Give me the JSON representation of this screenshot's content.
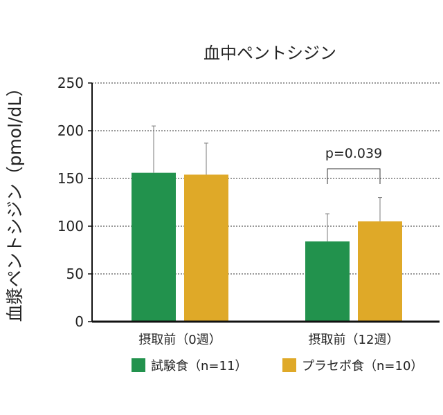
{
  "colors": {
    "test": "#22924d",
    "placebo": "#dfa928",
    "axis": "#111111",
    "grid": "#333333",
    "error": "#7a7a7a"
  },
  "chart_data": {
    "type": "bar",
    "title": "血中ペントシジン",
    "xlabel": "",
    "ylabel": "血漿ペントシジン（pmol/dL）",
    "categories": [
      "摂取前（0週）",
      "摂取前（12週）"
    ],
    "series": [
      {
        "name": "試験食（n=11）",
        "values": [
          156,
          84
        ],
        "error": [
          49,
          29
        ]
      },
      {
        "name": "プラセボ食（n=10）",
        "values": [
          154,
          105
        ],
        "error": [
          33,
          25
        ]
      }
    ],
    "ylim": [
      0,
      250
    ],
    "yticks": [
      0,
      50,
      100,
      150,
      200,
      250
    ],
    "grid": "dotted horizontal",
    "legend": "bottom",
    "annotation": {
      "text": "p=0.039",
      "category_index": 1
    }
  }
}
